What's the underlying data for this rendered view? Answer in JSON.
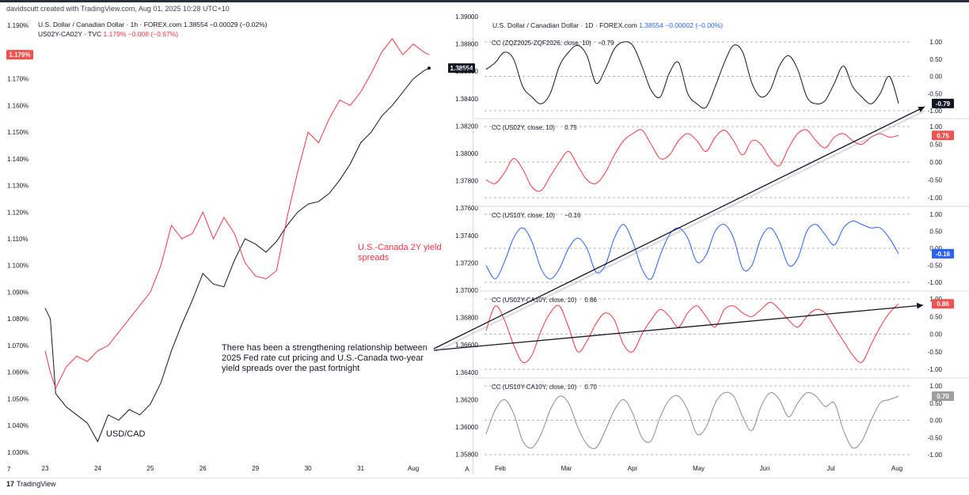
{
  "header": {
    "credit": "davidscutt created with TradingView.com, Aug 01, 2025 10:28 UTC+10"
  },
  "left_panel": {
    "legend_line1": "U.S. Dollar / Canadian Dollar · 1h · FOREX.com  1.38554  −0.00029 (−0.02%)",
    "legend_line2_name": "US02Y-CA02Y · TVC",
    "legend_line2_vals": "1.179%  −0.008 (−0.67%)",
    "label_usdcad": "USD/CAD",
    "label_spread": "U.S.-Canada 2Y yield spreads",
    "price_tag_spread": "1.179%",
    "price_tag_usdcad": "1.38554"
  },
  "right_panel": {
    "legend_main_name": "U.S. Dollar / Canadian Dollar · 1D · FOREX.com",
    "legend_main_vals": "1.38554  −0.00002 (−0.00%)",
    "pane_labels": [
      "CC (ZQZ2025-ZQF2026, close, 10)",
      "CC (US02Y, close, 10)",
      "CC (US10Y, close, 10)",
      "CC (US02Y-CA10Y, close, 10)",
      "CC (US10Y-CA10Y, close, 10)"
    ],
    "pane_values": [
      "−0.79",
      "0.75",
      "−0.16",
      "0.86",
      "0.70"
    ],
    "tags": [
      "-0.79",
      "0.75",
      "-0.16",
      "0.86",
      "0.70"
    ]
  },
  "annotation": "There has been a strengthening relationship between 2025 Fed rate cut pricing and U.S.-Canada two-year yield spreads over the past fortnight",
  "footer": {
    "brand": "TradingView",
    "brand_mark": "17"
  },
  "colors": {
    "black": "#131722",
    "red": "#f23645",
    "blue": "#2962ff",
    "grey": "#8c8c8c",
    "tag_black": "#131722",
    "tag_red": "#ef5350",
    "tag_blue": "#2962ff",
    "tag_grey": "#9e9e9e"
  },
  "chart_data": [
    {
      "type": "line",
      "title": "",
      "x_ticks": [
        "23",
        "24",
        "25",
        "26",
        "29",
        "30",
        "31",
        "Aug"
      ],
      "y_left_ticks": [
        "1.030%",
        "1.040%",
        "1.050%",
        "1.060%",
        "1.070%",
        "1.080%",
        "1.090%",
        "1.100%",
        "1.110%",
        "1.120%",
        "1.130%",
        "1.140%",
        "1.150%",
        "1.160%",
        "1.170%",
        "1.180%",
        "1.190%"
      ],
      "ylim_left": [
        1.027,
        1.193
      ],
      "series": [
        {
          "name": "USD/CAD",
          "axis": "usdcad",
          "points": [
            [
              0,
              1.084
            ],
            [
              0.1,
              1.08
            ],
            [
              0.2,
              1.052
            ],
            [
              0.4,
              1.047
            ],
            [
              0.6,
              1.044
            ],
            [
              0.8,
              1.041
            ],
            [
              1.0,
              1.034
            ],
            [
              1.2,
              1.044
            ],
            [
              1.4,
              1.042
            ],
            [
              1.6,
              1.046
            ],
            [
              1.8,
              1.044
            ],
            [
              2.0,
              1.048
            ],
            [
              2.2,
              1.056
            ],
            [
              2.4,
              1.068
            ],
            [
              2.6,
              1.078
            ],
            [
              2.8,
              1.087
            ],
            [
              3.0,
              1.097
            ],
            [
              3.2,
              1.093
            ],
            [
              3.4,
              1.092
            ],
            [
              3.6,
              1.102
            ],
            [
              3.8,
              1.11
            ],
            [
              4.0,
              1.108
            ],
            [
              4.2,
              1.105
            ],
            [
              4.4,
              1.109
            ],
            [
              4.6,
              1.115
            ],
            [
              4.8,
              1.12
            ],
            [
              5.0,
              1.123
            ],
            [
              5.2,
              1.124
            ],
            [
              5.4,
              1.127
            ],
            [
              5.6,
              1.132
            ],
            [
              5.8,
              1.138
            ],
            [
              6.0,
              1.146
            ],
            [
              6.2,
              1.15
            ],
            [
              6.4,
              1.156
            ],
            [
              6.6,
              1.16
            ],
            [
              6.8,
              1.165
            ],
            [
              7.0,
              1.17
            ],
            [
              7.2,
              1.173
            ],
            [
              7.3,
              1.174
            ]
          ]
        },
        {
          "name": "U.S.-Canada 2Y yield spreads",
          "axis": "left",
          "points": [
            [
              0,
              1.068
            ],
            [
              0.1,
              1.06
            ],
            [
              0.2,
              1.054
            ],
            [
              0.4,
              1.062
            ],
            [
              0.6,
              1.066
            ],
            [
              0.8,
              1.064
            ],
            [
              1.0,
              1.068
            ],
            [
              1.2,
              1.07
            ],
            [
              1.4,
              1.075
            ],
            [
              1.6,
              1.08
            ],
            [
              1.8,
              1.085
            ],
            [
              2.0,
              1.09
            ],
            [
              2.2,
              1.1
            ],
            [
              2.4,
              1.115
            ],
            [
              2.6,
              1.11
            ],
            [
              2.8,
              1.112
            ],
            [
              3.0,
              1.12
            ],
            [
              3.2,
              1.11
            ],
            [
              3.4,
              1.118
            ],
            [
              3.6,
              1.112
            ],
            [
              3.8,
              1.101
            ],
            [
              4.0,
              1.096
            ],
            [
              4.2,
              1.095
            ],
            [
              4.4,
              1.098
            ],
            [
              4.6,
              1.118
            ],
            [
              4.8,
              1.135
            ],
            [
              5.0,
              1.15
            ],
            [
              5.2,
              1.146
            ],
            [
              5.4,
              1.155
            ],
            [
              5.6,
              1.162
            ],
            [
              5.8,
              1.16
            ],
            [
              6.0,
              1.165
            ],
            [
              6.2,
              1.172
            ],
            [
              6.4,
              1.18
            ],
            [
              6.6,
              1.185
            ],
            [
              6.8,
              1.179
            ],
            [
              7.0,
              1.183
            ],
            [
              7.2,
              1.18
            ],
            [
              7.3,
              1.179
            ]
          ]
        }
      ]
    },
    {
      "type": "line",
      "title": "",
      "x_ticks": [
        "Feb",
        "Mar",
        "Apr",
        "May",
        "Jun",
        "Jul",
        "Aug"
      ],
      "y_main_ticks": [
        "1.35800",
        "1.36000",
        "1.36200",
        "1.36400",
        "1.36600",
        "1.36800",
        "1.37000",
        "1.37200",
        "1.37400",
        "1.37600",
        "1.37800",
        "1.38000",
        "1.38200",
        "1.38400",
        "1.38600",
        "1.38800",
        "1.39000"
      ],
      "pane_ticks": [
        "1.00",
        "0.50",
        "0.00",
        "-0.50",
        "-1.00"
      ],
      "ylim_panes": [
        -1.0,
        1.0
      ],
      "series": [
        {
          "name": "CC (ZQZ2025-ZQF2026, close, 10)",
          "values": [
            0.2,
            0.4,
            0.7,
            0.5,
            -0.3,
            -0.6,
            -0.8,
            -0.5,
            0.3,
            0.7,
            0.9,
            0.6,
            -0.2,
            0.2,
            0.8,
            1.0,
            0.9,
            0.3,
            -0.4,
            -0.6,
            0.1,
            0.4,
            -0.5,
            -0.8,
            -0.9,
            -0.3,
            0.4,
            0.9,
            0.7,
            -0.2,
            -0.6,
            -0.4,
            0.3,
            0.6,
            0.2,
            -0.6,
            -0.8,
            -0.7,
            -0.2,
            0.3,
            -0.3,
            -0.6,
            -0.8,
            -0.5,
            0.0,
            -0.79
          ]
        },
        {
          "name": "CC (US02Y, close, 10)",
          "values": [
            -0.5,
            -0.6,
            -0.3,
            0.1,
            -0.2,
            -0.7,
            -0.8,
            -0.4,
            0.0,
            0.3,
            -0.1,
            -0.5,
            -0.6,
            -0.3,
            0.2,
            0.6,
            0.8,
            0.9,
            0.5,
            0.1,
            0.2,
            0.6,
            0.8,
            0.6,
            0.3,
            0.7,
            0.9,
            0.6,
            0.2,
            0.6,
            0.5,
            0.1,
            -0.1,
            0.4,
            0.8,
            0.9,
            0.6,
            0.4,
            0.7,
            0.8,
            0.6,
            0.5,
            0.7,
            0.8,
            0.7,
            0.75
          ]
        },
        {
          "name": "CC (US10Y, close, 10)",
          "values": [
            -0.5,
            -0.9,
            -0.4,
            0.3,
            0.6,
            0.2,
            -0.6,
            -0.9,
            -0.6,
            0.0,
            0.3,
            0.0,
            -0.7,
            -0.5,
            0.3,
            0.7,
            0.2,
            -0.6,
            -0.9,
            -0.2,
            0.4,
            0.6,
            0.3,
            -0.4,
            -0.2,
            0.5,
            0.7,
            0.3,
            -0.6,
            -0.5,
            0.3,
            0.6,
            0.2,
            -0.5,
            -0.3,
            0.5,
            0.7,
            0.4,
            0.1,
            0.6,
            0.8,
            0.7,
            0.6,
            0.6,
            0.3,
            -0.16
          ]
        },
        {
          "name": "CC (US02Y-CA10Y, close, 10)",
          "values": [
            0.1,
            0.8,
            0.4,
            -0.3,
            -0.8,
            -0.6,
            0.1,
            0.6,
            0.8,
            0.2,
            -0.5,
            -0.2,
            0.3,
            0.6,
            0.4,
            -0.3,
            -0.5,
            0.0,
            0.4,
            0.7,
            0.5,
            0.2,
            0.6,
            0.8,
            0.5,
            0.2,
            0.7,
            0.8,
            0.6,
            0.5,
            0.7,
            0.9,
            0.7,
            0.4,
            0.2,
            0.5,
            0.7,
            0.6,
            0.2,
            -0.2,
            -0.6,
            -0.8,
            -0.3,
            0.2,
            0.6,
            0.86
          ]
        },
        {
          "name": "CC (US10Y-CA10Y, close, 10)",
          "values": [
            -0.4,
            0.3,
            0.6,
            0.2,
            -0.6,
            -0.8,
            -0.4,
            0.3,
            0.7,
            0.5,
            -0.2,
            -0.7,
            -0.8,
            -0.3,
            0.3,
            0.6,
            0.2,
            -0.5,
            -0.6,
            0.1,
            0.6,
            0.7,
            0.3,
            -0.4,
            -0.2,
            0.5,
            0.8,
            0.7,
            0.1,
            -0.3,
            0.4,
            0.8,
            0.6,
            0.1,
            0.5,
            0.8,
            0.7,
            0.4,
            0.5,
            -0.3,
            -0.8,
            -0.6,
            0.0,
            0.5,
            0.6,
            0.7
          ]
        }
      ]
    }
  ]
}
